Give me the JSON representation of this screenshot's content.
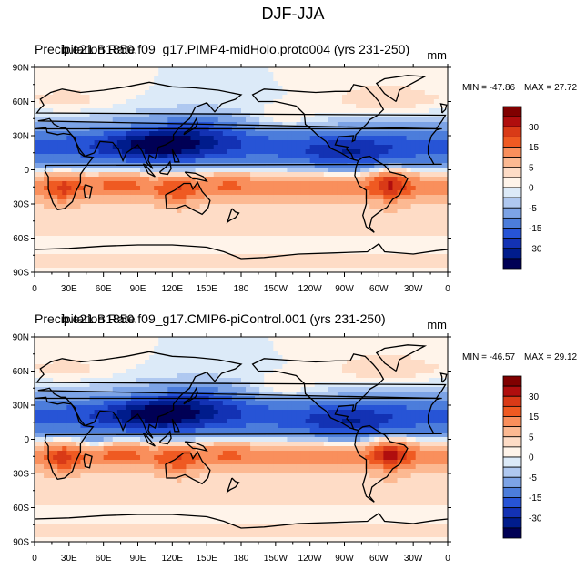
{
  "figure": {
    "title": "DJF-JJA"
  },
  "colors": {
    "levels": [
      "#800000",
      "#b00e0e",
      "#d93a17",
      "#ef5a22",
      "#f98f5c",
      "#fcb992",
      "#fedcc6",
      "#fff4ea",
      "#dceaf8",
      "#afc8f0",
      "#7ca3e6",
      "#4c7ddb",
      "#2754d6",
      "#1332b4",
      "#001c8c",
      "#000055"
    ],
    "land_outline": "#000000"
  },
  "colorbar": {
    "labels": [
      "30",
      "15",
      "5",
      "0",
      "-5",
      "-15",
      "-30"
    ]
  },
  "chart_data": [
    {
      "type": "heatmap",
      "variable_label": "Precipitation Rate",
      "case_label": "b.e21.B1850.f09_g17.PIMP4-midHolo.proto004 (yrs 231-250)",
      "units": "mm",
      "min_label": "MIN = -47.86",
      "max_label": "MAX = 27.72",
      "min": -47.86,
      "max": 27.72,
      "y_ticks": [
        "90N",
        "60N",
        "30N",
        "0",
        "30S",
        "60S",
        "90S"
      ],
      "x_ticks": [
        "0",
        "30E",
        "60E",
        "90E",
        "120E",
        "150E",
        "180",
        "150W",
        "120W",
        "90W",
        "60W",
        "30W",
        "0"
      ],
      "xlim": [
        0,
        360
      ],
      "ylim": [
        -90,
        90
      ],
      "contour_levels": [
        -35,
        -30,
        -25,
        -20,
        -15,
        -10,
        -5,
        -2,
        0,
        2,
        5,
        10,
        15,
        20,
        25,
        30,
        35
      ]
    },
    {
      "type": "heatmap",
      "variable_label": "Precipitation Rate",
      "case_label": "b.e21.B1850.f09_g17.CMIP6-piControl.001 (yrs 231-250)",
      "units": "mm",
      "min_label": "MIN = -46.57",
      "max_label": "MAX = 29.12",
      "min": -46.57,
      "max": 29.12,
      "y_ticks": [
        "90N",
        "60N",
        "30N",
        "0",
        "30S",
        "60S",
        "90S"
      ],
      "x_ticks": [
        "0",
        "30E",
        "60E",
        "90E",
        "120E",
        "150E",
        "180",
        "150W",
        "120W",
        "90W",
        "60W",
        "30W",
        "0"
      ],
      "xlim": [
        0,
        360
      ],
      "ylim": [
        -90,
        90
      ],
      "contour_levels": [
        -35,
        -30,
        -25,
        -20,
        -15,
        -10,
        -5,
        -2,
        0,
        2,
        5,
        10,
        15,
        20,
        25,
        30,
        35
      ]
    }
  ]
}
